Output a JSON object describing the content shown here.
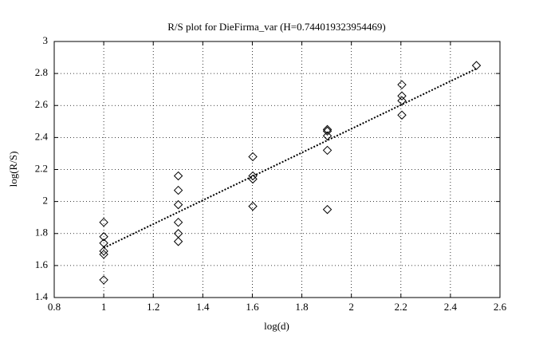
{
  "chart_data": {
    "type": "scatter",
    "title": "R/S plot for DieFirma_var (H=0.744019323954469)",
    "x_label": "log(d)",
    "y_label": "log(R/S)",
    "x": [
      1,
      1,
      1,
      1,
      1,
      1,
      1.301,
      1.301,
      1.301,
      1.301,
      1.301,
      1.301,
      1.602,
      1.602,
      1.602,
      1.602,
      1.903,
      1.903,
      1.903,
      1.903,
      1.903,
      2.204,
      2.204,
      2.204,
      2.204,
      2.505
    ],
    "y": [
      1.87,
      1.78,
      1.74,
      1.69,
      1.67,
      1.51,
      2.16,
      2.07,
      1.98,
      1.87,
      1.8,
      1.75,
      2.28,
      2.16,
      2.14,
      1.97,
      2.45,
      2.44,
      2.41,
      2.32,
      1.95,
      2.73,
      2.66,
      2.63,
      2.54,
      2.85
    ],
    "marker": "diamond",
    "color": "#000000",
    "fit": {
      "x": [
        1,
        2.505
      ],
      "y": [
        1.71,
        2.83
      ],
      "style": "dotted"
    },
    "xlim": [
      0.8,
      2.6
    ],
    "xticks": [
      0.8,
      1,
      1.2,
      1.4,
      1.6,
      1.8,
      2,
      2.2,
      2.4,
      2.6
    ],
    "ylim": [
      1.4,
      3
    ],
    "yticks": [
      1.4,
      1.6,
      1.8,
      2,
      2.2,
      2.4,
      2.6,
      2.8,
      3
    ],
    "grid": true
  }
}
